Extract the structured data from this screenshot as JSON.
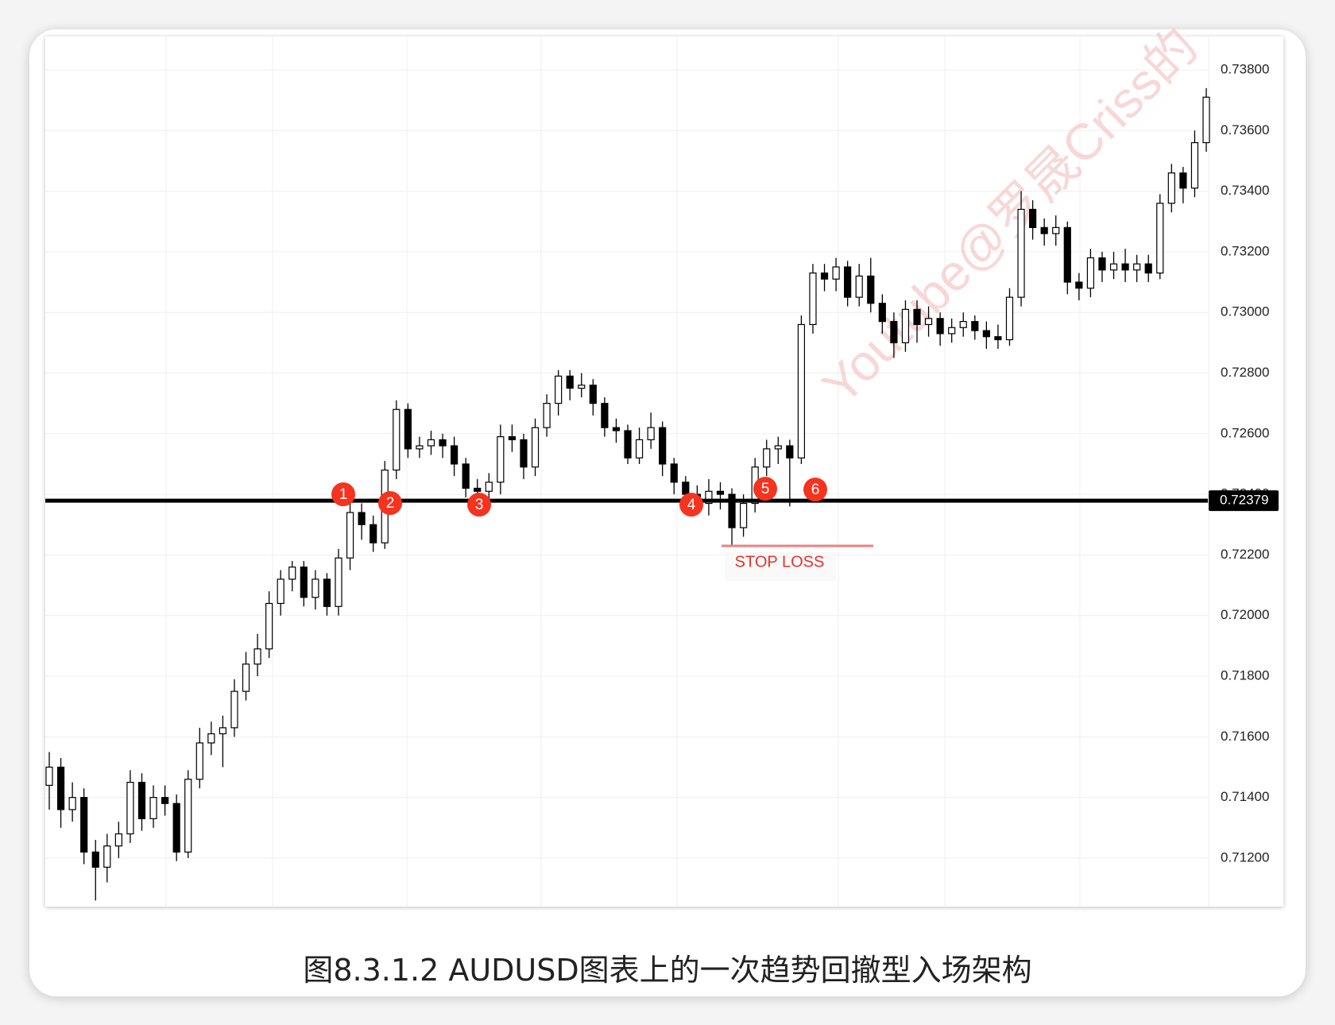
{
  "chart_data": {
    "type": "candlestick",
    "open": [
      0.7144,
      0.715,
      0.7136,
      0.714,
      0.7122,
      0.7117,
      0.7124,
      0.7128,
      0.7145,
      0.7133,
      0.714,
      0.7138,
      0.7122,
      0.7146,
      0.7158,
      0.7161,
      0.7163,
      0.7175,
      0.7184,
      0.7189,
      0.7204,
      0.7212,
      0.7216,
      0.7206,
      0.7212,
      0.7203,
      0.7219,
      0.7234,
      0.723,
      0.7224,
      0.7248,
      0.7268,
      0.7255,
      0.7256,
      0.7258,
      0.7256,
      0.725,
      0.7242,
      0.7241,
      0.7244,
      0.7259,
      0.7258,
      0.7249,
      0.7262,
      0.727,
      0.7279,
      0.7275,
      0.7276,
      0.727,
      0.7262,
      0.7261,
      0.7252,
      0.7258,
      0.7262,
      0.725,
      0.7244,
      0.724,
      0.7237,
      0.7241,
      0.724,
      0.7229,
      0.7237,
      0.7249,
      0.7255,
      0.7256,
      0.7252,
      0.7296,
      0.7313,
      0.7311,
      0.7315,
      0.7305,
      0.7312,
      0.7303,
      0.7297,
      0.729,
      0.7301,
      0.7296,
      0.7298,
      0.7293,
      0.7295,
      0.7297,
      0.7294,
      0.7292,
      0.7291,
      0.7305,
      0.7334,
      0.7328,
      0.7326,
      0.7328,
      0.731,
      0.7308,
      0.7318,
      0.7314,
      0.7316,
      0.7314,
      0.7316,
      0.7313,
      0.7336,
      0.7346,
      0.7341,
      0.7356
    ],
    "high": [
      0.7155,
      0.7153,
      0.7145,
      0.7143,
      0.7126,
      0.7128,
      0.7132,
      0.7149,
      0.7148,
      0.7144,
      0.7144,
      0.7141,
      0.7149,
      0.7163,
      0.7165,
      0.7167,
      0.7179,
      0.7188,
      0.7194,
      0.7208,
      0.7215,
      0.7218,
      0.7218,
      0.7215,
      0.7214,
      0.7222,
      0.7238,
      0.7237,
      0.7233,
      0.7251,
      0.7271,
      0.727,
      0.7259,
      0.7261,
      0.726,
      0.7259,
      0.7252,
      0.7245,
      0.7247,
      0.7263,
      0.7263,
      0.726,
      0.7265,
      0.7273,
      0.7281,
      0.7281,
      0.728,
      0.7278,
      0.7272,
      0.7265,
      0.7263,
      0.7262,
      0.7267,
      0.7264,
      0.7252,
      0.7246,
      0.7243,
      0.7245,
      0.7244,
      0.7242,
      0.724,
      0.7252,
      0.7258,
      0.7259,
      0.7258,
      0.7299,
      0.7316,
      0.7316,
      0.7318,
      0.7317,
      0.7316,
      0.7318,
      0.7306,
      0.73,
      0.7304,
      0.7304,
      0.7302,
      0.73,
      0.7298,
      0.73,
      0.7299,
      0.7297,
      0.7296,
      0.7308,
      0.734,
      0.7337,
      0.7331,
      0.7332,
      0.733,
      0.7313,
      0.7321,
      0.732,
      0.732,
      0.7321,
      0.7319,
      0.7319,
      0.7339,
      0.7349,
      0.7348,
      0.736,
      0.7374
    ],
    "low": [
      0.7136,
      0.713,
      0.7132,
      0.7118,
      0.7106,
      0.7112,
      0.712,
      0.7125,
      0.7129,
      0.713,
      0.7134,
      0.7119,
      0.712,
      0.7143,
      0.7154,
      0.715,
      0.716,
      0.7172,
      0.718,
      0.7186,
      0.72,
      0.7208,
      0.7203,
      0.7202,
      0.72,
      0.72,
      0.7215,
      0.7225,
      0.7221,
      0.7222,
      0.7245,
      0.7252,
      0.7252,
      0.7253,
      0.7252,
      0.7246,
      0.7239,
      0.7238,
      0.7237,
      0.724,
      0.7254,
      0.7245,
      0.7246,
      0.7259,
      0.7266,
      0.7271,
      0.7272,
      0.7266,
      0.7259,
      0.7257,
      0.725,
      0.725,
      0.7255,
      0.7246,
      0.724,
      0.7237,
      0.7234,
      0.7233,
      0.7235,
      0.7223,
      0.7226,
      0.7234,
      0.7246,
      0.725,
      0.7236,
      0.725,
      0.7293,
      0.7307,
      0.7307,
      0.7302,
      0.7302,
      0.73,
      0.7293,
      0.7285,
      0.7287,
      0.729,
      0.7292,
      0.7289,
      0.729,
      0.7292,
      0.7291,
      0.7288,
      0.7288,
      0.7289,
      0.7302,
      0.7324,
      0.7322,
      0.7322,
      0.7306,
      0.7304,
      0.7305,
      0.731,
      0.7311,
      0.731,
      0.731,
      0.731,
      0.7311,
      0.7333,
      0.7336,
      0.7338,
      0.7353
    ],
    "close": [
      0.715,
      0.7136,
      0.714,
      0.7122,
      0.7117,
      0.7124,
      0.7128,
      0.7145,
      0.7133,
      0.714,
      0.7138,
      0.7122,
      0.7146,
      0.7158,
      0.7161,
      0.7163,
      0.7175,
      0.7184,
      0.7189,
      0.7204,
      0.7212,
      0.7216,
      0.7206,
      0.7212,
      0.7203,
      0.7219,
      0.7234,
      0.723,
      0.7224,
      0.7248,
      0.7268,
      0.7255,
      0.7256,
      0.7258,
      0.7256,
      0.725,
      0.7242,
      0.7241,
      0.7244,
      0.7259,
      0.7258,
      0.7249,
      0.7262,
      0.727,
      0.7279,
      0.7275,
      0.7276,
      0.727,
      0.7262,
      0.7261,
      0.7252,
      0.7258,
      0.7262,
      0.725,
      0.7244,
      0.724,
      0.7237,
      0.7241,
      0.724,
      0.7229,
      0.7237,
      0.7249,
      0.7255,
      0.7256,
      0.7252,
      0.7296,
      0.7313,
      0.7311,
      0.7315,
      0.7305,
      0.7312,
      0.7303,
      0.7297,
      0.729,
      0.7301,
      0.7296,
      0.7298,
      0.7293,
      0.7295,
      0.7297,
      0.7294,
      0.7292,
      0.7291,
      0.7305,
      0.7334,
      0.7328,
      0.7326,
      0.7328,
      0.731,
      0.7308,
      0.7318,
      0.7314,
      0.7316,
      0.7314,
      0.7316,
      0.7313,
      0.7336,
      0.7346,
      0.7341,
      0.7356,
      0.7371
    ],
    "up_color": "#ffffff",
    "down_color": "#000000",
    "ylim": [
      0.7104,
      0.7391
    ],
    "yticks": [
      {
        "value": 0.712,
        "label": "0.71200"
      },
      {
        "value": 0.714,
        "label": "0.71400"
      },
      {
        "value": 0.716,
        "label": "0.71600"
      },
      {
        "value": 0.718,
        "label": "0.71800"
      },
      {
        "value": 0.72,
        "label": "0.72000"
      },
      {
        "value": 0.722,
        "label": "0.72200"
      },
      {
        "value": 0.724,
        "label": "0.72400"
      },
      {
        "value": 0.726,
        "label": "0.72600"
      },
      {
        "value": 0.728,
        "label": "0.72800"
      },
      {
        "value": 0.73,
        "label": "0.73000"
      },
      {
        "value": 0.732,
        "label": "0.73200"
      },
      {
        "value": 0.734,
        "label": "0.73400"
      },
      {
        "value": 0.736,
        "label": "0.73600"
      },
      {
        "value": 0.738,
        "label": "0.73800"
      }
    ],
    "grid": true,
    "price_line": {
      "value": 0.72379,
      "label": "0.72379"
    },
    "markers": [
      "1",
      "2",
      "3",
      "4",
      "5",
      "6"
    ],
    "stop_loss": {
      "value": 0.7223,
      "label": "STOP LOSS"
    },
    "watermark": "Youtube@罗晟Criss的",
    "caption": "图8.3.1.2  AUDUSD图表上的一次趋势回撤型入场架构"
  }
}
